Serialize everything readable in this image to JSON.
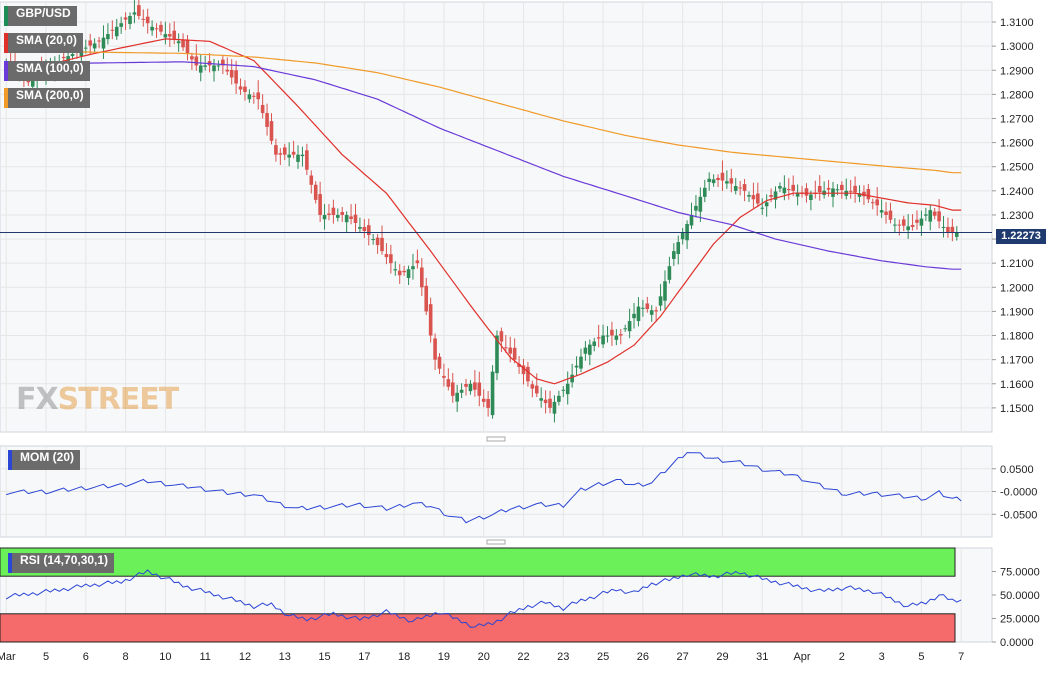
{
  "chart_data": [
    {
      "type": "candlestick",
      "panel": "price",
      "title": "GBP/USD",
      "last_price": "1.22273",
      "ylim": [
        1.14,
        1.3183
      ],
      "y_ticks": [
        {
          "value": 1.31,
          "label": "1.3100"
        },
        {
          "value": 1.3,
          "label": "1.3000"
        },
        {
          "value": 1.29,
          "label": "1.2900"
        },
        {
          "value": 1.28,
          "label": "1.2800"
        },
        {
          "value": 1.27,
          "label": "1.2700"
        },
        {
          "value": 1.26,
          "label": "1.2600"
        },
        {
          "value": 1.25,
          "label": "1.2500"
        },
        {
          "value": 1.24,
          "label": "1.2400"
        },
        {
          "value": 1.23,
          "label": "1.2300"
        },
        {
          "value": 1.22,
          "label": "1.2200"
        },
        {
          "value": 1.21,
          "label": "1.2100"
        },
        {
          "value": 1.2,
          "label": "1.2000"
        },
        {
          "value": 1.19,
          "label": "1.1900"
        },
        {
          "value": 1.18,
          "label": "1.1800"
        },
        {
          "value": 1.17,
          "label": "1.1700"
        },
        {
          "value": 1.16,
          "label": "1.1600"
        },
        {
          "value": 1.15,
          "label": "1.1500"
        }
      ],
      "x_labels": [
        {
          "index": 0,
          "label": "Mar"
        },
        {
          "index": 9,
          "label": "5"
        },
        {
          "index": 18,
          "label": "6"
        },
        {
          "index": 27,
          "label": "8"
        },
        {
          "index": 36,
          "label": "10"
        },
        {
          "index": 45,
          "label": "11"
        },
        {
          "index": 54,
          "label": "12"
        },
        {
          "index": 63,
          "label": "13"
        },
        {
          "index": 72,
          "label": "15"
        },
        {
          "index": 81,
          "label": "17"
        },
        {
          "index": 90,
          "label": "18"
        },
        {
          "index": 99,
          "label": "19"
        },
        {
          "index": 108,
          "label": "20"
        },
        {
          "index": 117,
          "label": "22"
        },
        {
          "index": 126,
          "label": "23"
        },
        {
          "index": 135,
          "label": "25"
        },
        {
          "index": 144,
          "label": "26"
        },
        {
          "index": 153,
          "label": "27"
        },
        {
          "index": 162,
          "label": "29"
        },
        {
          "index": 171,
          "label": "31"
        },
        {
          "index": 180,
          "label": "Apr"
        },
        {
          "index": 189,
          "label": "2"
        },
        {
          "index": 198,
          "label": "3"
        },
        {
          "index": 207,
          "label": "5"
        },
        {
          "index": 216,
          "label": "7"
        }
      ],
      "anchors": [
        [
          0,
          1.295
        ],
        [
          6,
          1.285
        ],
        [
          14,
          1.295
        ],
        [
          22,
          1.302
        ],
        [
          30,
          1.314
        ],
        [
          34,
          1.308
        ],
        [
          40,
          1.302
        ],
        [
          44,
          1.292
        ],
        [
          50,
          1.292
        ],
        [
          54,
          1.282
        ],
        [
          58,
          1.278
        ],
        [
          62,
          1.255
        ],
        [
          68,
          1.255
        ],
        [
          72,
          1.23
        ],
        [
          78,
          1.23
        ],
        [
          84,
          1.22
        ],
        [
          90,
          1.205
        ],
        [
          94,
          1.21
        ],
        [
          98,
          1.17
        ],
        [
          102,
          1.155
        ],
        [
          106,
          1.16
        ],
        [
          110,
          1.15
        ],
        [
          112,
          1.18
        ],
        [
          116,
          1.17
        ],
        [
          120,
          1.158
        ],
        [
          124,
          1.15
        ],
        [
          128,
          1.16
        ],
        [
          132,
          1.175
        ],
        [
          136,
          1.18
        ],
        [
          140,
          1.18
        ],
        [
          144,
          1.192
        ],
        [
          148,
          1.19
        ],
        [
          152,
          1.215
        ],
        [
          156,
          1.23
        ],
        [
          160,
          1.245
        ],
        [
          164,
          1.244
        ],
        [
          168,
          1.24
        ],
        [
          172,
          1.233
        ],
        [
          176,
          1.242
        ],
        [
          182,
          1.238
        ],
        [
          188,
          1.241
        ],
        [
          194,
          1.239
        ],
        [
          198,
          1.234
        ],
        [
          202,
          1.226
        ],
        [
          206,
          1.225
        ],
        [
          210,
          1.232
        ],
        [
          214,
          1.2227
        ]
      ],
      "overlays": [
        {
          "name": "SMA (20,0)",
          "color": "#e0302a",
          "points": [
            [
              0,
              1.288
            ],
            [
              20,
              1.297
            ],
            [
              36,
              1.303
            ],
            [
              46,
              1.302
            ],
            [
              56,
              1.294
            ],
            [
              66,
              1.275
            ],
            [
              76,
              1.255
            ],
            [
              86,
              1.239
            ],
            [
              96,
              1.215
            ],
            [
              106,
              1.19
            ],
            [
              114,
              1.171
            ],
            [
              120,
              1.162
            ],
            [
              124,
              1.16
            ],
            [
              130,
              1.164
            ],
            [
              136,
              1.169
            ],
            [
              142,
              1.176
            ],
            [
              148,
              1.188
            ],
            [
              154,
              1.203
            ],
            [
              160,
              1.218
            ],
            [
              166,
              1.229
            ],
            [
              172,
              1.236
            ],
            [
              178,
              1.239
            ],
            [
              186,
              1.239
            ],
            [
              192,
              1.239
            ],
            [
              198,
              1.237
            ],
            [
              204,
              1.235
            ],
            [
              210,
              1.234
            ],
            [
              214,
              1.232
            ]
          ]
        },
        {
          "name": "SMA (100,0)",
          "color": "#6a3ad8",
          "points": [
            [
              0,
              1.292
            ],
            [
              20,
              1.293
            ],
            [
              40,
              1.2935
            ],
            [
              56,
              1.2915
            ],
            [
              70,
              1.286
            ],
            [
              84,
              1.278
            ],
            [
              98,
              1.266
            ],
            [
              112,
              1.256
            ],
            [
              126,
              1.246
            ],
            [
              140,
              1.238
            ],
            [
              152,
              1.231
            ],
            [
              164,
              1.226
            ],
            [
              174,
              1.22
            ],
            [
              186,
              1.215
            ],
            [
              198,
              1.211
            ],
            [
              208,
              1.2085
            ],
            [
              214,
              1.2075
            ]
          ]
        },
        {
          "name": "SMA (200,0)",
          "color": "#f09a28",
          "points": [
            [
              0,
              1.298
            ],
            [
              20,
              1.2975
            ],
            [
              40,
              1.297
            ],
            [
              56,
              1.2955
            ],
            [
              70,
              1.293
            ],
            [
              84,
              1.289
            ],
            [
              98,
              1.283
            ],
            [
              112,
              1.276
            ],
            [
              126,
              1.269
            ],
            [
              140,
              1.263
            ],
            [
              152,
              1.259
            ],
            [
              164,
              1.256
            ],
            [
              176,
              1.254
            ],
            [
              188,
              1.252
            ],
            [
              200,
              1.25
            ],
            [
              210,
              1.2485
            ],
            [
              214,
              1.2475
            ]
          ]
        }
      ]
    },
    {
      "type": "line",
      "panel": "momentum",
      "title": "MOM (20)",
      "ylim": [
        -0.1,
        0.1
      ],
      "y_ticks": [
        {
          "value": 0.05,
          "label": "0.0500"
        },
        {
          "value": 0.0,
          "label": "-0.0000"
        },
        {
          "value": -0.05,
          "label": "-0.0500"
        }
      ],
      "series": [
        {
          "color": "#2b45d4",
          "points": [
            [
              0,
              -0.002
            ],
            [
              10,
              0.0
            ],
            [
              18,
              0.008
            ],
            [
              26,
              0.014
            ],
            [
              32,
              0.023
            ],
            [
              38,
              0.014
            ],
            [
              42,
              0.01
            ],
            [
              50,
              -0.003
            ],
            [
              56,
              -0.007
            ],
            [
              62,
              -0.028
            ],
            [
              66,
              -0.038
            ],
            [
              72,
              -0.034
            ],
            [
              80,
              -0.029
            ],
            [
              86,
              -0.038
            ],
            [
              92,
              -0.026
            ],
            [
              96,
              -0.032
            ],
            [
              100,
              -0.052
            ],
            [
              104,
              -0.065
            ],
            [
              110,
              -0.051
            ],
            [
              114,
              -0.038
            ],
            [
              120,
              -0.029
            ],
            [
              126,
              -0.03
            ],
            [
              130,
              0.003
            ],
            [
              134,
              0.016
            ],
            [
              138,
              0.024
            ],
            [
              142,
              0.014
            ],
            [
              146,
              0.019
            ],
            [
              150,
              0.054
            ],
            [
              154,
              0.088
            ],
            [
              160,
              0.072
            ],
            [
              166,
              0.063
            ],
            [
              172,
              0.047
            ],
            [
              178,
              0.036
            ],
            [
              184,
              0.013
            ],
            [
              190,
              -0.006
            ],
            [
              196,
              -0.004
            ],
            [
              200,
              -0.008
            ],
            [
              204,
              -0.012
            ],
            [
              208,
              -0.015
            ],
            [
              211,
              -0.003
            ],
            [
              214,
              -0.016
            ]
          ]
        }
      ]
    },
    {
      "type": "line",
      "panel": "rsi",
      "title": "RSI (14,70,30,1)",
      "ylim": [
        0,
        100
      ],
      "y_ticks": [
        {
          "value": 75,
          "label": "75.0000"
        },
        {
          "value": 50,
          "label": "50.0000"
        },
        {
          "value": 25,
          "label": "25.0000"
        },
        {
          "value": 0,
          "label": "0.0000"
        }
      ],
      "bands": [
        {
          "from": 70,
          "to": 100,
          "color": "#6cf05a"
        },
        {
          "from": 0,
          "to": 30,
          "color": "#f56a6a"
        }
      ],
      "series": [
        {
          "color": "#2b45d4",
          "points": [
            [
              0,
              48
            ],
            [
              10,
              54
            ],
            [
              18,
              60
            ],
            [
              26,
              64
            ],
            [
              32,
              75
            ],
            [
              36,
              68
            ],
            [
              40,
              60
            ],
            [
              46,
              52
            ],
            [
              52,
              44
            ],
            [
              56,
              38
            ],
            [
              60,
              40
            ],
            [
              64,
              28
            ],
            [
              68,
              24
            ],
            [
              74,
              30
            ],
            [
              80,
              24
            ],
            [
              86,
              32
            ],
            [
              92,
              22
            ],
            [
              98,
              32
            ],
            [
              102,
              24
            ],
            [
              106,
              16
            ],
            [
              110,
              20
            ],
            [
              114,
              30
            ],
            [
              118,
              38
            ],
            [
              122,
              42
            ],
            [
              126,
              36
            ],
            [
              130,
              44
            ],
            [
              134,
              50
            ],
            [
              138,
              56
            ],
            [
              142,
              52
            ],
            [
              146,
              62
            ],
            [
              150,
              66
            ],
            [
              154,
              72
            ],
            [
              160,
              70
            ],
            [
              166,
              74
            ],
            [
              172,
              66
            ],
            [
              178,
              60
            ],
            [
              184,
              54
            ],
            [
              190,
              58
            ],
            [
              196,
              54
            ],
            [
              200,
              46
            ],
            [
              204,
              38
            ],
            [
              208,
              42
            ],
            [
              211,
              50
            ],
            [
              214,
              44
            ]
          ]
        }
      ]
    }
  ],
  "labels": {
    "pair": "GBP/USD",
    "sma20": "SMA (20,0)",
    "sma100": "SMA (100,0)",
    "sma200": "SMA (200,0)",
    "mom": "MOM (20)",
    "rsi": "RSI (14,70,30,1)",
    "price": "1.22273",
    "logo_fx": "FX",
    "logo_street": "STREET"
  },
  "colors": {
    "up": "#2e8b57",
    "down": "#d9534f",
    "grid": "#e6e6e6",
    "panel_bg": "#f7f8fa",
    "price_line": "#1f3a6e",
    "sma20": "#e0302a",
    "sma100": "#6a3ad8",
    "sma200": "#f09a28",
    "mom": "#2b45d4",
    "rsi": "#2b45d4",
    "rsi_high": "#6cf05a",
    "rsi_low": "#f56a6a"
  }
}
